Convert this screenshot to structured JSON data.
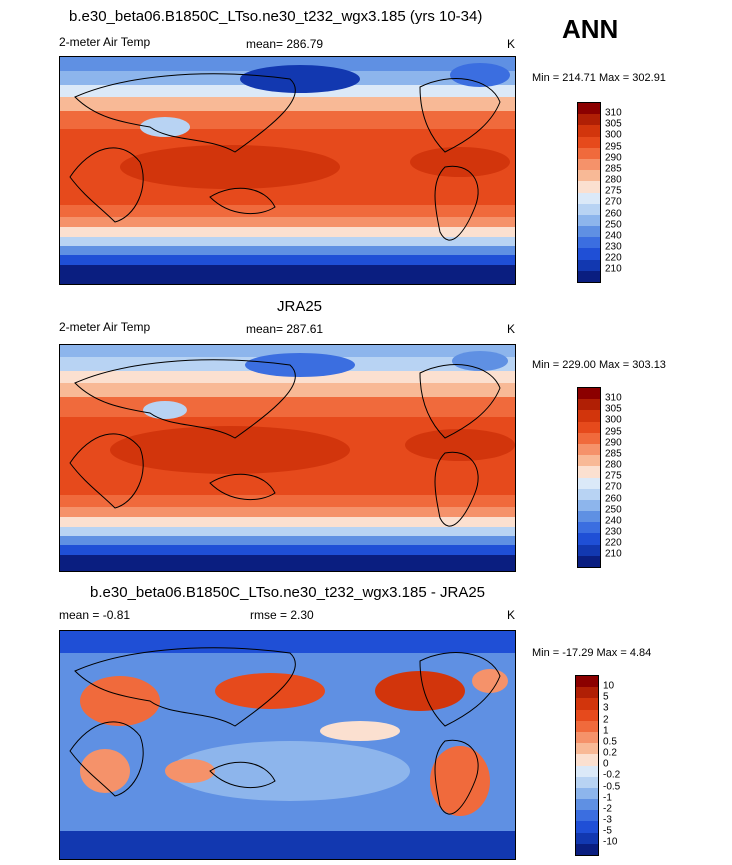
{
  "season": "ANN",
  "panels": [
    {
      "title": "b.e30_beta06.B1850C_LTso.ne30_t232_wgx3.185 (yrs 10-34)",
      "left_label": "2-meter Air Temp",
      "center_label": "mean= 286.79",
      "units": "K",
      "minmax": "Min = 214.71 Max = 302.91",
      "colorbar_labels": [
        "310",
        "305",
        "300",
        "295",
        "290",
        "285",
        "280",
        "275",
        "270",
        "260",
        "250",
        "240",
        "230",
        "220",
        "210"
      ]
    },
    {
      "title": "JRA25",
      "left_label": "2-meter Air Temp",
      "center_label": "mean= 287.61",
      "units": "K",
      "minmax": "Min = 229.00 Max = 303.13",
      "colorbar_labels": [
        "310",
        "305",
        "300",
        "295",
        "290",
        "285",
        "280",
        "275",
        "270",
        "260",
        "250",
        "240",
        "230",
        "220",
        "210"
      ]
    },
    {
      "title": "b.e30_beta06.B1850C_LTso.ne30_t232_wgx3.185 - JRA25",
      "left_label": "mean =  -0.81",
      "center_label": "rmse =   2.30",
      "units": "K",
      "minmax": "Min = -17.29 Max =   4.84",
      "colorbar_labels": [
        "10",
        "5",
        "3",
        "2",
        "1",
        "0.5",
        "0.2",
        "0",
        "-0.2",
        "-0.5",
        "-1",
        "-2",
        "-3",
        "-5",
        "-10"
      ]
    }
  ],
  "colors": {
    "abs_scale": [
      "#8b0000",
      "#b01f05",
      "#d2350c",
      "#e64a1c",
      "#f06a3c",
      "#f5926a",
      "#f8b996",
      "#fbe0d0",
      "#dbe9f8",
      "#b8d3f3",
      "#8db5ec",
      "#5f90e3",
      "#3b6ee0",
      "#1f4fd6",
      "#1238b0",
      "#0a1e80"
    ],
    "diff_scale": [
      "#8b0000",
      "#b01f05",
      "#d2350c",
      "#e64a1c",
      "#f06a3c",
      "#f5926a",
      "#f8b996",
      "#fbe0d0",
      "#dbe9f8",
      "#b8d3f3",
      "#8db5ec",
      "#5f90e3",
      "#3b6ee0",
      "#1f4fd6",
      "#1238b0",
      "#0a1e80"
    ]
  }
}
